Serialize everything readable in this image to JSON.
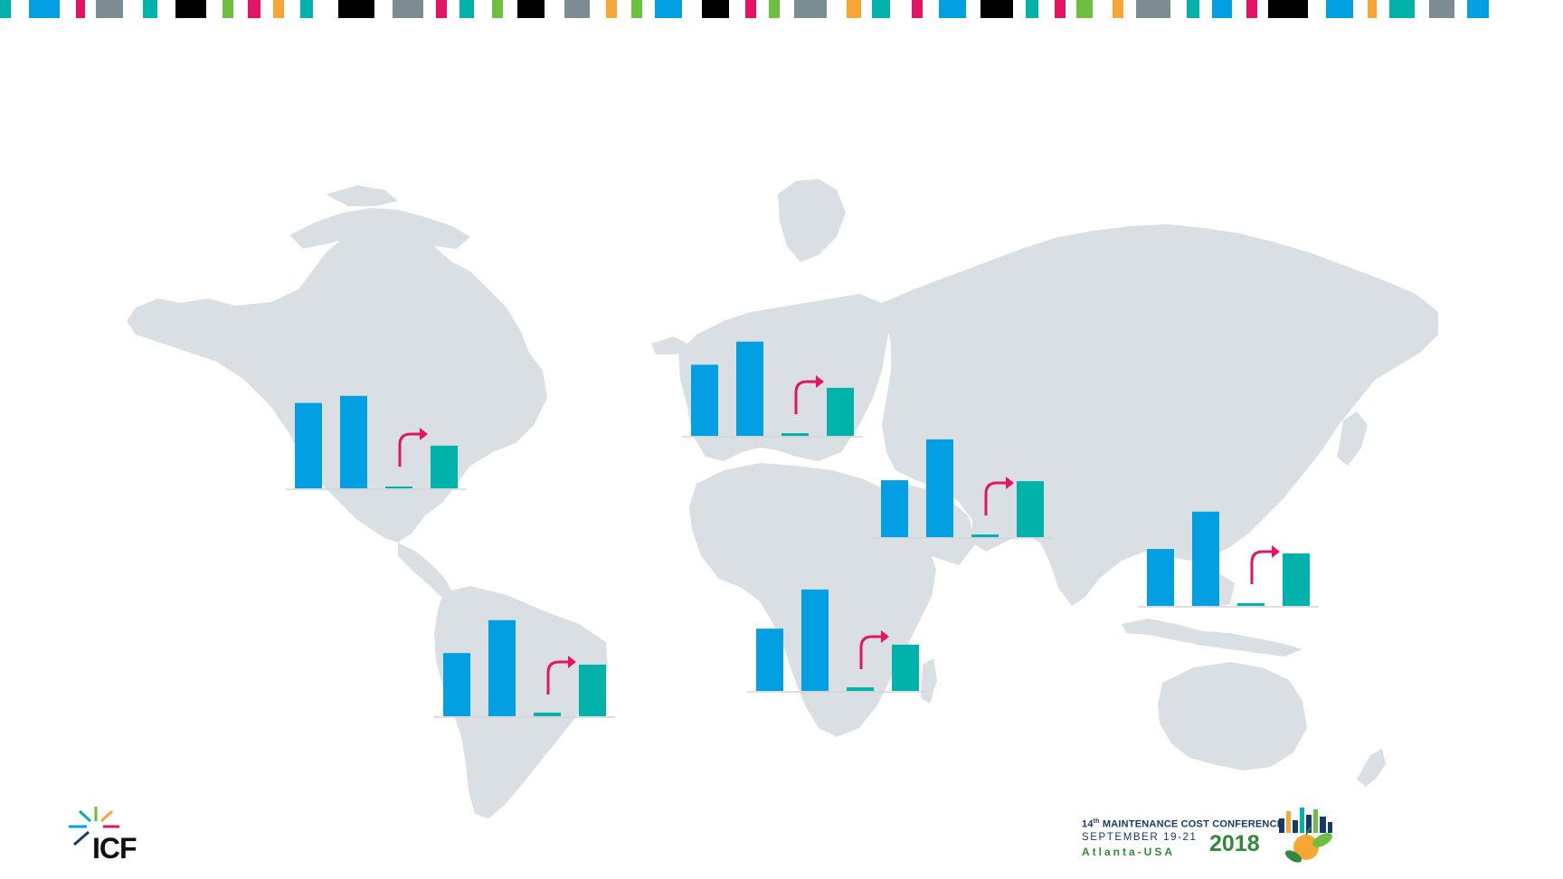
{
  "palette": {
    "bar_blue": "#02a0e3",
    "bar_teal": "#00b2a9",
    "arrow": "#e31466",
    "map": "#d9dfe3",
    "axis": "#cfd6da"
  },
  "top_stripe": {
    "colors": [
      "#00b2a9",
      "#02a0e3",
      "#e31466",
      "#7c8c93",
      "#00b2a9",
      "#000000",
      "#6cbf3f",
      "#e31466",
      "#f7a535",
      "#00b2a9",
      "#000000",
      "#7c8c93",
      "#e31466",
      "#00b2a9",
      "#6cbf3f",
      "#000000",
      "#7c8c93",
      "#f7a535",
      "#6cbf3f",
      "#02a0e3",
      "#000000",
      "#e31466",
      "#6cbf3f",
      "#7c8c93",
      "#f7a535",
      "#00b2a9",
      "#e31466",
      "#02a0e3",
      "#000000",
      "#00b2a9",
      "#e31466",
      "#6cbf3f",
      "#f7a535",
      "#7c8c93",
      "#00b2a9",
      "#02a0e3",
      "#e31466",
      "#000000",
      "#02a0e3",
      "#f7a535",
      "#00b2a9",
      "#7c8c93",
      "#02a0e3"
    ]
  },
  "chart_data": [
    {
      "type": "bar",
      "region": "North America",
      "values": [
        96,
        104,
        1,
        48
      ],
      "trend": "up"
    },
    {
      "type": "bar",
      "region": "Europe",
      "values": [
        80,
        106,
        3,
        54
      ],
      "trend": "up"
    },
    {
      "type": "bar",
      "region": "Middle East",
      "values": [
        64,
        110,
        3,
        63
      ],
      "trend": "up"
    },
    {
      "type": "bar",
      "region": "Asia Pacific",
      "values": [
        64,
        106,
        3,
        59
      ],
      "trend": "up"
    },
    {
      "type": "bar",
      "region": "Latin America",
      "values": [
        71,
        108,
        4,
        58
      ],
      "trend": "up"
    },
    {
      "type": "bar",
      "region": "Africa",
      "values": [
        70,
        114,
        4,
        52
      ],
      "trend": "up"
    }
  ],
  "logos": {
    "icf": "ICF",
    "conference_line1_prefix": "14",
    "conference_line1_sup": "th",
    "conference_line1_rest": " MAINTENANCE COST CONFERENCE",
    "conference_line2": "SEPTEMBER 19-21",
    "conference_line3": "Atlanta-USA",
    "conference_year": "2018"
  }
}
